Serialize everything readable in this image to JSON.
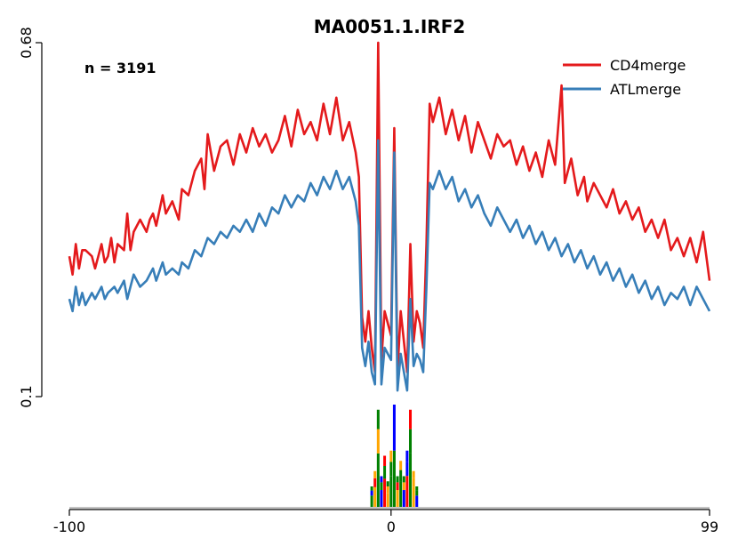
{
  "chart_data": {
    "type": "line",
    "title": "MA0051.1.IRF2",
    "annotation": "n = 3191",
    "xlabel": "",
    "ylabel": "",
    "xlim": [
      -100,
      99
    ],
    "ylim": [
      0.1,
      0.68
    ],
    "x_ticks": [
      "-100",
      "0",
      "99"
    ],
    "x_tick_values": [
      -100,
      0,
      99
    ],
    "y_ticks": [
      "0.1",
      "0.68"
    ],
    "y_tick_values": [
      0.1,
      0.68
    ],
    "legend_position": "top-right",
    "grid": false,
    "series": [
      {
        "name": "CD4merge",
        "color": "#e41a1c",
        "anchors": [
          [
            -100,
            0.33
          ],
          [
            -99,
            0.3
          ],
          [
            -98,
            0.35
          ],
          [
            -97,
            0.31
          ],
          [
            -96,
            0.34
          ],
          [
            -95,
            0.34
          ],
          [
            -93,
            0.33
          ],
          [
            -92,
            0.31
          ],
          [
            -90,
            0.35
          ],
          [
            -89,
            0.32
          ],
          [
            -88,
            0.33
          ],
          [
            -87,
            0.36
          ],
          [
            -86,
            0.32
          ],
          [
            -85,
            0.35
          ],
          [
            -83,
            0.34
          ],
          [
            -82,
            0.4
          ],
          [
            -81,
            0.34
          ],
          [
            -80,
            0.37
          ],
          [
            -78,
            0.39
          ],
          [
            -76,
            0.37
          ],
          [
            -75,
            0.39
          ],
          [
            -74,
            0.4
          ],
          [
            -73,
            0.38
          ],
          [
            -71,
            0.43
          ],
          [
            -70,
            0.4
          ],
          [
            -68,
            0.42
          ],
          [
            -66,
            0.39
          ],
          [
            -65,
            0.44
          ],
          [
            -63,
            0.43
          ],
          [
            -61,
            0.47
          ],
          [
            -59,
            0.49
          ],
          [
            -58,
            0.44
          ],
          [
            -57,
            0.53
          ],
          [
            -55,
            0.47
          ],
          [
            -53,
            0.51
          ],
          [
            -51,
            0.52
          ],
          [
            -49,
            0.48
          ],
          [
            -47,
            0.53
          ],
          [
            -45,
            0.5
          ],
          [
            -43,
            0.54
          ],
          [
            -41,
            0.51
          ],
          [
            -39,
            0.53
          ],
          [
            -37,
            0.5
          ],
          [
            -35,
            0.52
          ],
          [
            -33,
            0.56
          ],
          [
            -31,
            0.51
          ],
          [
            -29,
            0.57
          ],
          [
            -27,
            0.53
          ],
          [
            -25,
            0.55
          ],
          [
            -23,
            0.52
          ],
          [
            -21,
            0.58
          ],
          [
            -19,
            0.53
          ],
          [
            -17,
            0.59
          ],
          [
            -15,
            0.52
          ],
          [
            -13,
            0.55
          ],
          [
            -11,
            0.5
          ],
          [
            -10,
            0.46
          ],
          [
            -9,
            0.23
          ],
          [
            -8,
            0.19
          ],
          [
            -7,
            0.24
          ],
          [
            -6,
            0.18
          ],
          [
            -5,
            0.14
          ],
          [
            -4,
            0.68
          ],
          [
            -3,
            0.16
          ],
          [
            -2,
            0.24
          ],
          [
            -1,
            0.22
          ],
          [
            0,
            0.2
          ],
          [
            1,
            0.54
          ],
          [
            2,
            0.14
          ],
          [
            3,
            0.24
          ],
          [
            4,
            0.19
          ],
          [
            5,
            0.14
          ],
          [
            6,
            0.35
          ],
          [
            7,
            0.19
          ],
          [
            8,
            0.24
          ],
          [
            9,
            0.22
          ],
          [
            10,
            0.18
          ],
          [
            11,
            0.35
          ],
          [
            12,
            0.58
          ],
          [
            13,
            0.55
          ],
          [
            15,
            0.59
          ],
          [
            17,
            0.53
          ],
          [
            19,
            0.57
          ],
          [
            21,
            0.52
          ],
          [
            23,
            0.56
          ],
          [
            25,
            0.5
          ],
          [
            27,
            0.55
          ],
          [
            29,
            0.52
          ],
          [
            31,
            0.49
          ],
          [
            33,
            0.53
          ],
          [
            35,
            0.51
          ],
          [
            37,
            0.52
          ],
          [
            39,
            0.48
          ],
          [
            41,
            0.51
          ],
          [
            43,
            0.47
          ],
          [
            45,
            0.5
          ],
          [
            47,
            0.46
          ],
          [
            49,
            0.52
          ],
          [
            51,
            0.48
          ],
          [
            53,
            0.61
          ],
          [
            54,
            0.45
          ],
          [
            56,
            0.49
          ],
          [
            58,
            0.43
          ],
          [
            60,
            0.46
          ],
          [
            61,
            0.42
          ],
          [
            63,
            0.45
          ],
          [
            65,
            0.43
          ],
          [
            67,
            0.41
          ],
          [
            69,
            0.44
          ],
          [
            71,
            0.4
          ],
          [
            73,
            0.42
          ],
          [
            75,
            0.39
          ],
          [
            77,
            0.41
          ],
          [
            79,
            0.37
          ],
          [
            81,
            0.39
          ],
          [
            83,
            0.36
          ],
          [
            85,
            0.39
          ],
          [
            87,
            0.34
          ],
          [
            89,
            0.36
          ],
          [
            91,
            0.33
          ],
          [
            93,
            0.36
          ],
          [
            95,
            0.32
          ],
          [
            97,
            0.37
          ],
          [
            99,
            0.29
          ]
        ]
      },
      {
        "name": "ATLmerge",
        "color": "#377eb8",
        "anchors": [
          [
            -100,
            0.26
          ],
          [
            -99,
            0.24
          ],
          [
            -98,
            0.28
          ],
          [
            -97,
            0.25
          ],
          [
            -96,
            0.27
          ],
          [
            -95,
            0.25
          ],
          [
            -93,
            0.27
          ],
          [
            -92,
            0.26
          ],
          [
            -90,
            0.28
          ],
          [
            -89,
            0.26
          ],
          [
            -88,
            0.27
          ],
          [
            -86,
            0.28
          ],
          [
            -85,
            0.27
          ],
          [
            -83,
            0.29
          ],
          [
            -82,
            0.26
          ],
          [
            -80,
            0.3
          ],
          [
            -78,
            0.28
          ],
          [
            -76,
            0.29
          ],
          [
            -74,
            0.31
          ],
          [
            -73,
            0.29
          ],
          [
            -71,
            0.32
          ],
          [
            -70,
            0.3
          ],
          [
            -68,
            0.31
          ],
          [
            -66,
            0.3
          ],
          [
            -65,
            0.32
          ],
          [
            -63,
            0.31
          ],
          [
            -61,
            0.34
          ],
          [
            -59,
            0.33
          ],
          [
            -57,
            0.36
          ],
          [
            -55,
            0.35
          ],
          [
            -53,
            0.37
          ],
          [
            -51,
            0.36
          ],
          [
            -49,
            0.38
          ],
          [
            -47,
            0.37
          ],
          [
            -45,
            0.39
          ],
          [
            -43,
            0.37
          ],
          [
            -41,
            0.4
          ],
          [
            -39,
            0.38
          ],
          [
            -37,
            0.41
          ],
          [
            -35,
            0.4
          ],
          [
            -33,
            0.43
          ],
          [
            -31,
            0.41
          ],
          [
            -29,
            0.43
          ],
          [
            -27,
            0.42
          ],
          [
            -25,
            0.45
          ],
          [
            -23,
            0.43
          ],
          [
            -21,
            0.46
          ],
          [
            -19,
            0.44
          ],
          [
            -17,
            0.47
          ],
          [
            -15,
            0.44
          ],
          [
            -13,
            0.46
          ],
          [
            -11,
            0.42
          ],
          [
            -10,
            0.38
          ],
          [
            -9,
            0.18
          ],
          [
            -8,
            0.15
          ],
          [
            -7,
            0.19
          ],
          [
            -6,
            0.14
          ],
          [
            -5,
            0.12
          ],
          [
            -4,
            0.52
          ],
          [
            -3,
            0.12
          ],
          [
            -2,
            0.18
          ],
          [
            -1,
            0.17
          ],
          [
            0,
            0.16
          ],
          [
            1,
            0.5
          ],
          [
            2,
            0.11
          ],
          [
            3,
            0.17
          ],
          [
            4,
            0.14
          ],
          [
            5,
            0.11
          ],
          [
            6,
            0.26
          ],
          [
            7,
            0.15
          ],
          [
            8,
            0.17
          ],
          [
            9,
            0.16
          ],
          [
            10,
            0.14
          ],
          [
            11,
            0.28
          ],
          [
            12,
            0.45
          ],
          [
            13,
            0.44
          ],
          [
            15,
            0.47
          ],
          [
            17,
            0.44
          ],
          [
            19,
            0.46
          ],
          [
            21,
            0.42
          ],
          [
            23,
            0.44
          ],
          [
            25,
            0.41
          ],
          [
            27,
            0.43
          ],
          [
            29,
            0.4
          ],
          [
            31,
            0.38
          ],
          [
            33,
            0.41
          ],
          [
            35,
            0.39
          ],
          [
            37,
            0.37
          ],
          [
            39,
            0.39
          ],
          [
            41,
            0.36
          ],
          [
            43,
            0.38
          ],
          [
            45,
            0.35
          ],
          [
            47,
            0.37
          ],
          [
            49,
            0.34
          ],
          [
            51,
            0.36
          ],
          [
            53,
            0.33
          ],
          [
            55,
            0.35
          ],
          [
            57,
            0.32
          ],
          [
            59,
            0.34
          ],
          [
            61,
            0.31
          ],
          [
            63,
            0.33
          ],
          [
            65,
            0.3
          ],
          [
            67,
            0.32
          ],
          [
            69,
            0.29
          ],
          [
            71,
            0.31
          ],
          [
            73,
            0.28
          ],
          [
            75,
            0.3
          ],
          [
            77,
            0.27
          ],
          [
            79,
            0.29
          ],
          [
            81,
            0.26
          ],
          [
            83,
            0.28
          ],
          [
            85,
            0.25
          ],
          [
            87,
            0.27
          ],
          [
            89,
            0.26
          ],
          [
            91,
            0.28
          ],
          [
            93,
            0.25
          ],
          [
            95,
            0.28
          ],
          [
            97,
            0.26
          ],
          [
            99,
            0.24
          ]
        ]
      }
    ],
    "motif_logo": {
      "position_values": [
        -6,
        -5,
        -4,
        -3,
        -2,
        -1,
        0,
        1,
        2,
        3,
        4,
        5,
        6,
        7,
        8
      ],
      "heights": [
        0.2,
        0.35,
        0.95,
        0.3,
        0.5,
        0.25,
        0.55,
        1.0,
        0.3,
        0.45,
        0.3,
        0.55,
        0.95,
        0.35,
        0.2
      ],
      "colors": [
        "#008000",
        "#ffa500",
        "#008000",
        "#0000ff",
        "#ff0000",
        "#ffa500",
        "#008000",
        "#008000",
        "#ffa500",
        "#008000",
        "#0000ff",
        "#ff0000",
        "#008000",
        "#ffa500",
        "#0000ff"
      ]
    }
  }
}
